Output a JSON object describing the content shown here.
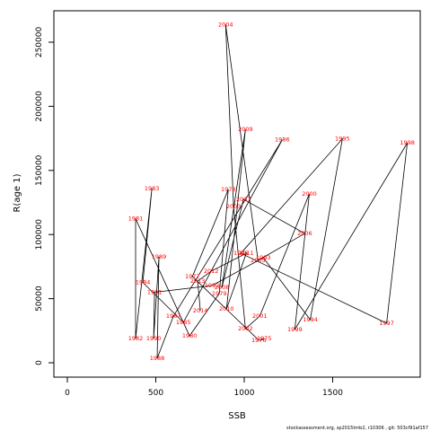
{
  "chart_data": {
    "type": "scatter",
    "connect": true,
    "xlabel": "SSB",
    "ylabel": "R(age 1)",
    "x": [
      1113,
      1083,
      707,
      910,
      859,
      691,
      386,
      386,
      478,
      427,
      656,
      1215,
      600,
      508,
      518,
      488,
      493,
      818,
      1108,
      1373,
      1555,
      981,
      1805,
      1922,
      1286,
      1368,
      1088,
      1007,
      940,
      895,
      1078,
      1342,
      996,
      874,
      1007,
      900,
      1012,
      813,
      737,
      752
    ],
    "values": [
      18900,
      17500,
      67200,
      135100,
      53900,
      21000,
      112300,
      18900,
      135800,
      62600,
      31500,
      173900,
      36400,
      3500,
      82600,
      18900,
      55000,
      60200,
      81900,
      33600,
      174600,
      85400,
      30800,
      171400,
      25900,
      131700,
      36400,
      26600,
      121800,
      263700,
      79800,
      100800,
      127500,
      58800,
      182100,
      42000,
      85400,
      71400,
      63700,
      40600
    ],
    "labels": [
      "1975",
      "1976",
      "1977",
      "1978",
      "1979",
      "1980",
      "1981",
      "1982",
      "1983",
      "1984",
      "1985",
      "1986",
      "1987",
      "1988",
      "1989",
      "1990",
      "1991",
      "1992",
      "1993",
      "1994",
      "1995",
      "1996",
      "1997",
      "1998",
      "1999",
      "2000",
      "2001",
      "2002",
      "2003",
      "2004",
      "2005",
      "2006",
      "2007",
      "2008",
      "2009",
      "2010",
      "2011",
      "2012",
      "2013",
      "2014"
    ],
    "label_color": "#ff0000",
    "line_color": "#000000",
    "xlim": [
      -76,
      1995
    ],
    "ylim": [
      -11200,
      274500
    ],
    "xticks": [
      0,
      500,
      1000,
      1500
    ],
    "yticks": [
      0,
      50000,
      100000,
      150000,
      200000,
      250000
    ],
    "footnote": "stockassessment.org, sp2015tmb2, r10306 , git: 503cf91af157"
  }
}
